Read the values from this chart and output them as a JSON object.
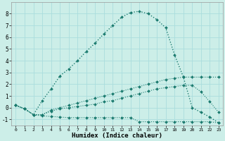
{
  "xlabel": "Humidex (Indice chaleur)",
  "bg_color": "#cceee8",
  "grid_color": "#aadddd",
  "line_color": "#1a7a6e",
  "xlim": [
    -0.5,
    23.5
  ],
  "ylim": [
    -1.5,
    9.0
  ],
  "yticks": [
    -1,
    0,
    1,
    2,
    3,
    4,
    5,
    6,
    7,
    8
  ],
  "xticks": [
    0,
    1,
    2,
    3,
    4,
    5,
    6,
    7,
    8,
    9,
    10,
    11,
    12,
    13,
    14,
    15,
    16,
    17,
    18,
    19,
    20,
    21,
    22,
    23
  ],
  "series_main_x": [
    0,
    1,
    2,
    3,
    4,
    5,
    6,
    7,
    8,
    9,
    10,
    11,
    12,
    13,
    14,
    15,
    16,
    17,
    18,
    19,
    20,
    21,
    22,
    23
  ],
  "series_main_y": [
    0.2,
    -0.1,
    -0.6,
    0.6,
    1.6,
    2.7,
    3.3,
    4.0,
    4.8,
    5.5,
    6.3,
    7.0,
    7.7,
    8.1,
    8.2,
    8.0,
    7.5,
    6.8,
    4.5,
    2.6,
    0.0,
    -0.4,
    -0.8,
    -1.3
  ],
  "series_mid2_x": [
    0,
    1,
    2,
    3,
    4,
    5,
    6,
    7,
    8,
    9,
    10,
    11,
    12,
    13,
    14,
    15,
    16,
    17,
    18,
    19,
    20,
    21,
    22,
    23
  ],
  "series_mid2_y": [
    0.2,
    -0.1,
    -0.6,
    -0.6,
    -0.2,
    0.0,
    0.2,
    0.4,
    0.6,
    0.8,
    1.0,
    1.2,
    1.4,
    1.6,
    1.8,
    2.0,
    2.2,
    2.4,
    2.5,
    2.6,
    2.6,
    2.6,
    2.6,
    2.6
  ],
  "series_mid1_x": [
    0,
    1,
    2,
    3,
    4,
    5,
    6,
    7,
    8,
    9,
    10,
    11,
    12,
    13,
    14,
    15,
    16,
    17,
    18,
    19,
    20,
    21,
    22,
    23
  ],
  "series_mid1_y": [
    0.2,
    -0.1,
    -0.6,
    -0.6,
    -0.3,
    -0.1,
    0.0,
    0.1,
    0.2,
    0.3,
    0.5,
    0.6,
    0.8,
    1.0,
    1.2,
    1.4,
    1.6,
    1.7,
    1.8,
    1.9,
    1.9,
    1.35,
    0.5,
    -0.4
  ],
  "series_low_x": [
    0,
    1,
    2,
    3,
    4,
    5,
    6,
    7,
    8,
    9,
    10,
    11,
    12,
    13,
    14,
    15,
    16,
    17,
    18,
    19,
    20,
    21,
    22,
    23
  ],
  "series_low_y": [
    0.2,
    -0.1,
    -0.6,
    -0.7,
    -0.75,
    -0.8,
    -0.85,
    -0.85,
    -0.85,
    -0.85,
    -0.85,
    -0.85,
    -0.85,
    -0.85,
    -1.2,
    -1.2,
    -1.2,
    -1.2,
    -1.2,
    -1.2,
    -1.2,
    -1.2,
    -1.2,
    -1.3
  ]
}
